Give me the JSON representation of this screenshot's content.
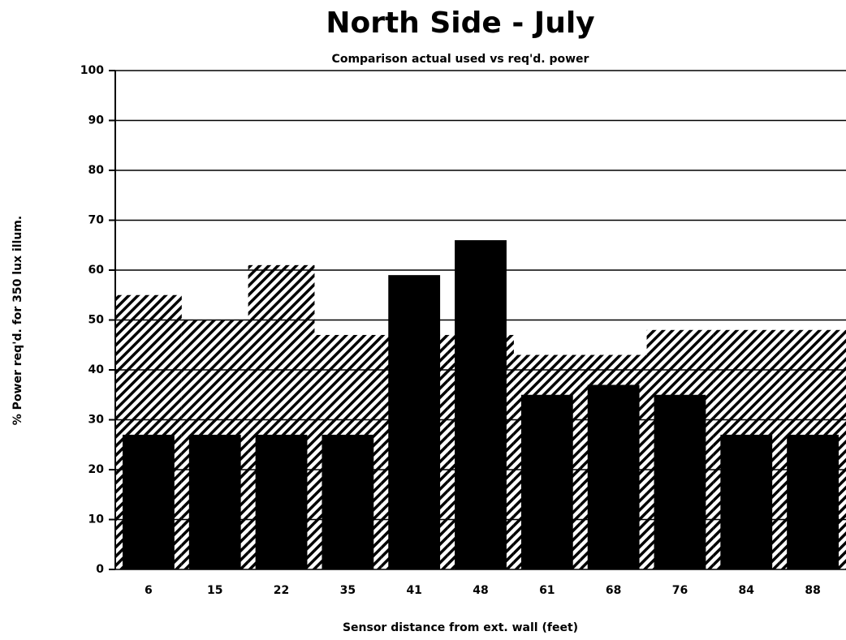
{
  "chart_data": {
    "type": "bar",
    "title": "North Side - July",
    "subtitle": "Comparison actual used vs req'd. power",
    "x_label": "Sensor distance from ext. wall (feet)",
    "y_label": "% Power req'd. for 350 lux illum.",
    "categories": [
      "6",
      "15",
      "22",
      "35",
      "41",
      "48",
      "61",
      "68",
      "76",
      "84",
      "88"
    ],
    "series": [
      {
        "color": "#000000",
        "style": "hatch",
        "values": [
          55,
          50,
          61,
          47,
          47,
          47,
          43,
          43,
          48,
          48,
          48
        ]
      },
      {
        "color": "#000000",
        "style": "solid",
        "values": [
          27,
          27,
          27,
          27,
          59,
          66,
          35,
          37,
          35,
          27,
          27
        ]
      }
    ],
    "ylim": [
      0,
      100
    ],
    "yticks": [
      0,
      10,
      20,
      30,
      40,
      50,
      60,
      70,
      80,
      90,
      100
    ],
    "grid": true
  }
}
